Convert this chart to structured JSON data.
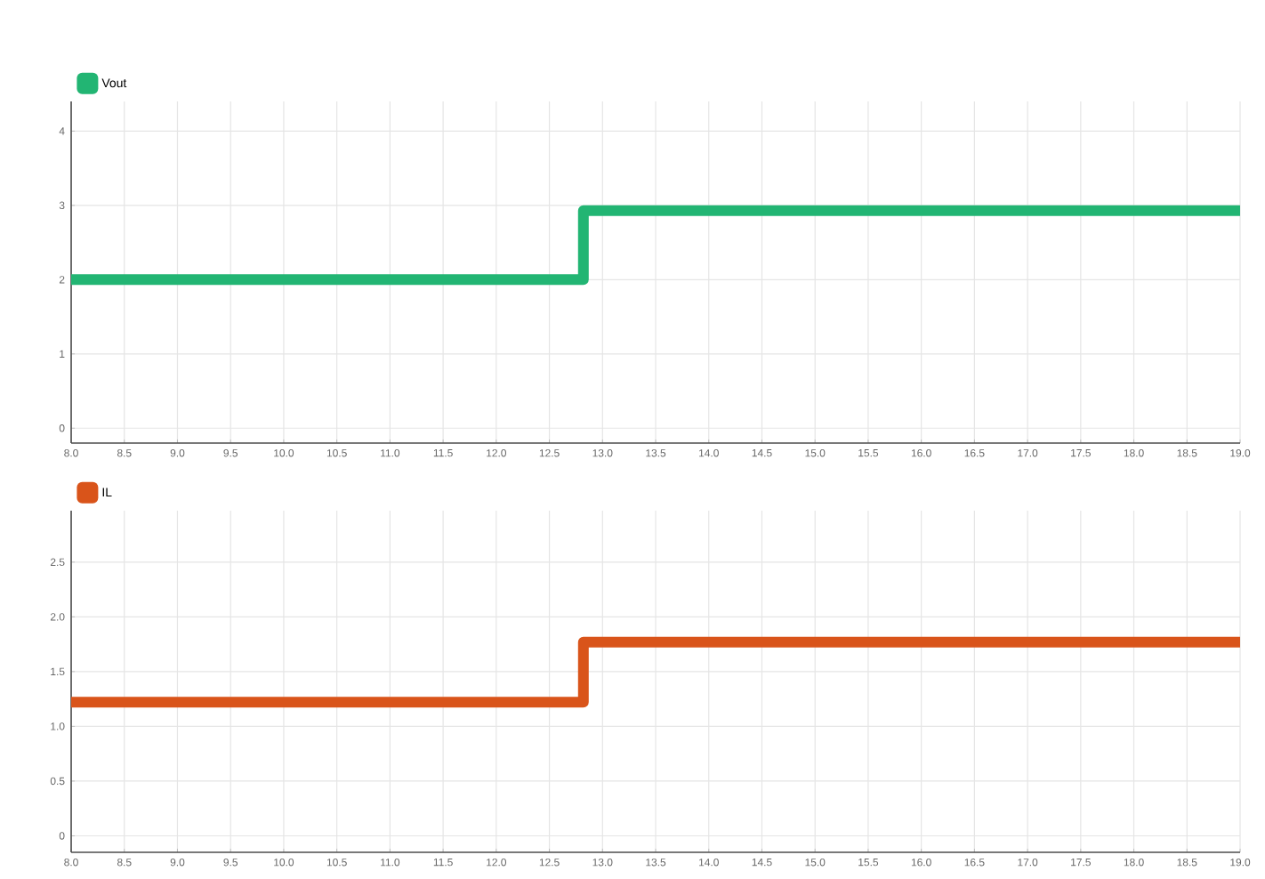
{
  "chart_data": [
    {
      "type": "line",
      "xlim": [
        8,
        19
      ],
      "ylim": [
        -0.2,
        4.4
      ],
      "xticks": [
        {
          "value": 8,
          "label": "8.0"
        },
        8.5,
        {
          "value": 9,
          "label": "9.0"
        },
        9.5,
        {
          "value": 10,
          "label": "10.0"
        },
        10.5,
        {
          "value": 11,
          "label": "11.0"
        },
        11.5,
        {
          "value": 12,
          "label": "12.0"
        },
        12.5,
        {
          "value": 13,
          "label": "13.0"
        },
        13.5,
        {
          "value": 14,
          "label": "14.0"
        },
        14.5,
        {
          "value": 15,
          "label": "15.0"
        },
        15.5,
        {
          "value": 16,
          "label": "16.0"
        },
        16.5,
        {
          "value": 17,
          "label": "17.0"
        },
        17.5,
        {
          "value": 18,
          "label": "18.0"
        },
        18.5,
        {
          "value": 19,
          "label": "19.0"
        }
      ],
      "yticks": [
        0,
        1,
        2,
        3,
        4
      ],
      "grid": true,
      "legend": "top left",
      "series": [
        {
          "name": "Vout",
          "color": "#22b573",
          "x": [
            8,
            12.82,
            12.82,
            19
          ],
          "values": [
            2.0,
            2.0,
            2.93,
            2.93
          ]
        }
      ]
    },
    {
      "type": "line",
      "xlim": [
        8,
        19
      ],
      "ylim": [
        -0.15,
        2.97
      ],
      "xticks": [
        {
          "value": 8,
          "label": "8.0"
        },
        8.5,
        {
          "value": 9,
          "label": "9.0"
        },
        9.5,
        {
          "value": 10,
          "label": "10.0"
        },
        10.5,
        {
          "value": 11,
          "label": "11.0"
        },
        11.5,
        {
          "value": 12,
          "label": "12.0"
        },
        12.5,
        {
          "value": 13,
          "label": "13.0"
        },
        13.5,
        {
          "value": 14,
          "label": "14.0"
        },
        14.5,
        {
          "value": 15,
          "label": "15.0"
        },
        15.5,
        {
          "value": 16,
          "label": "16.0"
        },
        16.5,
        {
          "value": 17,
          "label": "17.0"
        },
        17.5,
        {
          "value": 18,
          "label": "18.0"
        },
        18.5,
        {
          "value": 19,
          "label": "19.0"
        }
      ],
      "yticks": [
        0,
        0.5,
        {
          "value": 1,
          "label": "1.0"
        },
        1.5,
        {
          "value": 2,
          "label": "2.0"
        },
        2.5
      ],
      "grid": true,
      "legend": "top left",
      "series": [
        {
          "name": "IL",
          "color": "#d9541a",
          "x": [
            8,
            12.82,
            12.82,
            19
          ],
          "values": [
            1.22,
            1.22,
            1.77,
            1.77
          ]
        }
      ]
    }
  ]
}
